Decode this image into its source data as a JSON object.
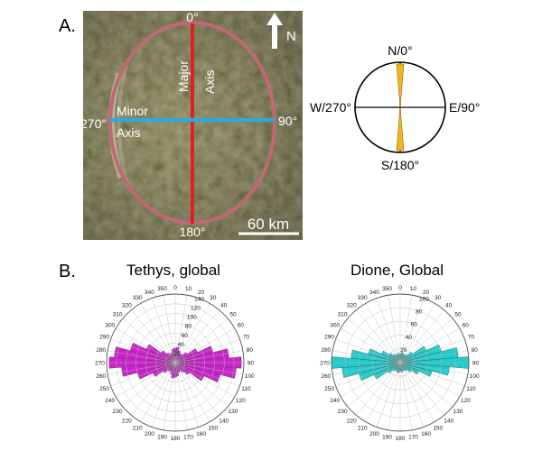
{
  "panel_a": {
    "label": "A.",
    "top_label": "0°",
    "bottom_label": "180°",
    "left_label": "270°",
    "right_label": "90°",
    "major_axis_label": "Major Axis",
    "minor_axis_label": "Minor Axis",
    "north_label": "N",
    "scale_label": "60 km",
    "colors": {
      "ellipse": "#c06878",
      "major_axis": "#e02020",
      "minor_axis": "#2ea8e0",
      "terrain": "#6e6a42"
    }
  },
  "compass": {
    "north": "N/0°",
    "east": "E/90°",
    "south": "S/180°",
    "west": "W/270°",
    "colors": {
      "petal": "#f2b51e"
    }
  },
  "panel_b": {
    "label": "B."
  },
  "chart_data": [
    {
      "type": "rose",
      "title": "Tethys, global",
      "color": "#cc22cc",
      "angular_ticks": [
        "0",
        "10",
        "20",
        "30",
        "40",
        "50",
        "60",
        "70",
        "80",
        "90",
        "100",
        "110",
        "120",
        "130",
        "140",
        "150",
        "160",
        "170",
        "180",
        "190",
        "200",
        "210",
        "220",
        "230",
        "240",
        "250",
        "260",
        "270",
        "280",
        "290",
        "300",
        "310",
        "320",
        "330",
        "340",
        "350"
      ],
      "radial_ticks": [
        "20",
        "40",
        "60",
        "80",
        "100",
        "120",
        "140"
      ],
      "rmax": 140,
      "bin_width_deg": 10,
      "directions_deg": [
        0,
        10,
        20,
        30,
        40,
        50,
        60,
        70,
        80,
        90,
        100,
        110,
        120,
        130,
        140,
        150,
        160,
        170,
        180,
        190,
        200,
        210,
        220,
        230,
        240,
        250,
        260,
        270,
        280,
        290,
        300,
        310,
        320,
        330,
        340,
        350
      ],
      "counts": [
        30,
        32,
        25,
        20,
        22,
        30,
        50,
        80,
        110,
        135,
        125,
        95,
        65,
        35,
        25,
        20,
        22,
        28,
        30,
        32,
        25,
        20,
        22,
        30,
        50,
        80,
        110,
        135,
        125,
        95,
        65,
        35,
        25,
        20,
        22,
        28
      ]
    },
    {
      "type": "rose",
      "title": "Dione, Global",
      "color": "#22cccc",
      "angular_ticks": [
        "0",
        "10",
        "20",
        "30",
        "40",
        "50",
        "60",
        "70",
        "80",
        "90",
        "100",
        "110",
        "120",
        "130",
        "140",
        "150",
        "160",
        "170",
        "180",
        "190",
        "200",
        "210",
        "220",
        "230",
        "240",
        "250",
        "260",
        "270",
        "280",
        "290",
        "300",
        "310",
        "320",
        "330",
        "340",
        "350"
      ],
      "radial_ticks": [
        "20",
        "40",
        "60",
        "80",
        "100"
      ],
      "rmax": 100,
      "bin_width_deg": 10,
      "directions_deg": [
        0,
        10,
        20,
        30,
        40,
        50,
        60,
        70,
        80,
        90,
        100,
        110,
        120,
        130,
        140,
        150,
        160,
        170,
        180,
        190,
        200,
        210,
        220,
        230,
        240,
        250,
        260,
        270,
        280,
        290,
        300,
        310,
        320,
        330,
        340,
        350
      ],
      "counts": [
        12,
        15,
        14,
        12,
        15,
        22,
        42,
        62,
        85,
        100,
        72,
        48,
        30,
        20,
        15,
        13,
        12,
        14,
        12,
        15,
        14,
        12,
        15,
        22,
        42,
        62,
        85,
        100,
        72,
        48,
        30,
        20,
        15,
        13,
        12,
        14
      ]
    }
  ]
}
